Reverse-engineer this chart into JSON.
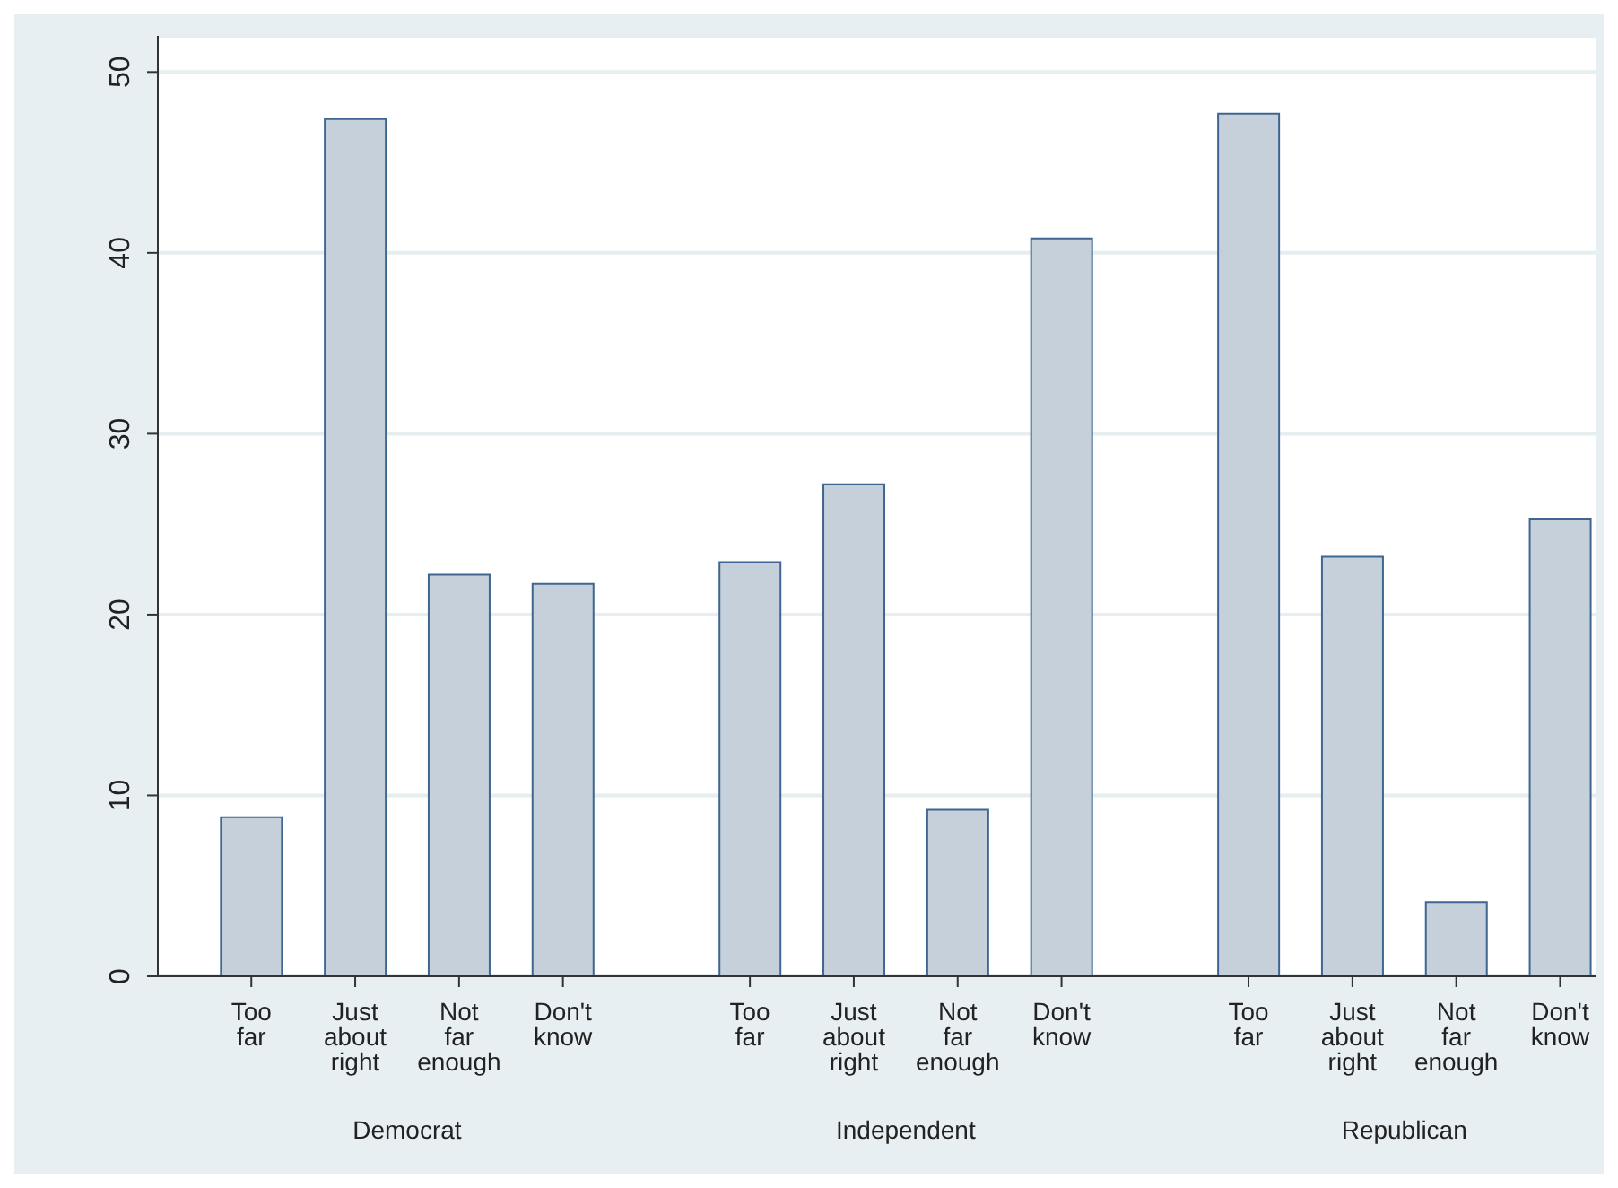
{
  "chart_data": {
    "type": "bar",
    "categories": [
      "Too far",
      "Just about right",
      "Not far enough",
      "Don't know",
      "Too far",
      "Just about right",
      "Not far enough",
      "Don't know",
      "Too far",
      "Just about right",
      "Not far enough",
      "Don't know"
    ],
    "values": [
      8.8,
      47.4,
      22.2,
      21.7,
      22.9,
      27.2,
      9.2,
      40.8,
      47.7,
      23.2,
      4.1,
      25.3
    ],
    "color": "#c6d0da",
    "ylim": [
      0,
      52
    ],
    "yticks": [
      0,
      10,
      20,
      30,
      40,
      50
    ],
    "grid": "y",
    "annotations": [
      "Democrat",
      "Independent",
      "Republican"
    ]
  }
}
